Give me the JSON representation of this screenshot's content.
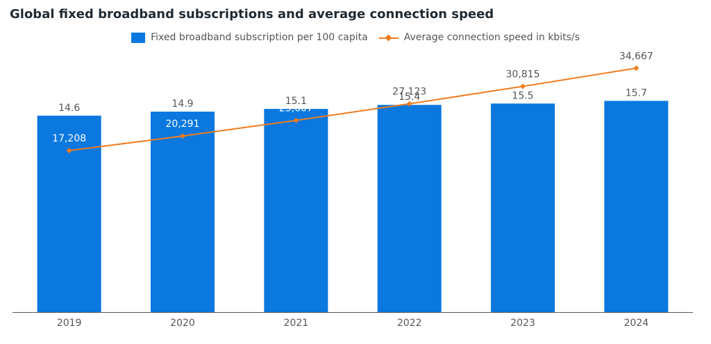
{
  "chart_data": {
    "type": "bar",
    "title": "Global fixed broadband subscriptions and average connection speed",
    "categories": [
      "2019",
      "2020",
      "2021",
      "2022",
      "2023",
      "2024"
    ],
    "series": [
      {
        "name": "Fixed broadband subscription per 100 capita",
        "type": "bar",
        "values": [
          14.6,
          14.9,
          15.1,
          15.4,
          15.5,
          15.7
        ],
        "labels": [
          "14.6",
          "14.9",
          "15.1",
          "15.4",
          "15.5",
          "15.7"
        ],
        "color": "#0a78df",
        "ylim": [
          0,
          20
        ]
      },
      {
        "name": "Average connection speed in kbits/s",
        "type": "line",
        "values": [
          17208,
          20291,
          23607,
          27123,
          30815,
          34667
        ],
        "labels": [
          "17,208",
          "20,291",
          "23,607",
          "27,123",
          "30,815",
          "34,667"
        ],
        "color": "#f07c1e",
        "ylim": [
          -17000,
          40000
        ]
      }
    ],
    "legend_position": "top-center",
    "grid": false
  }
}
